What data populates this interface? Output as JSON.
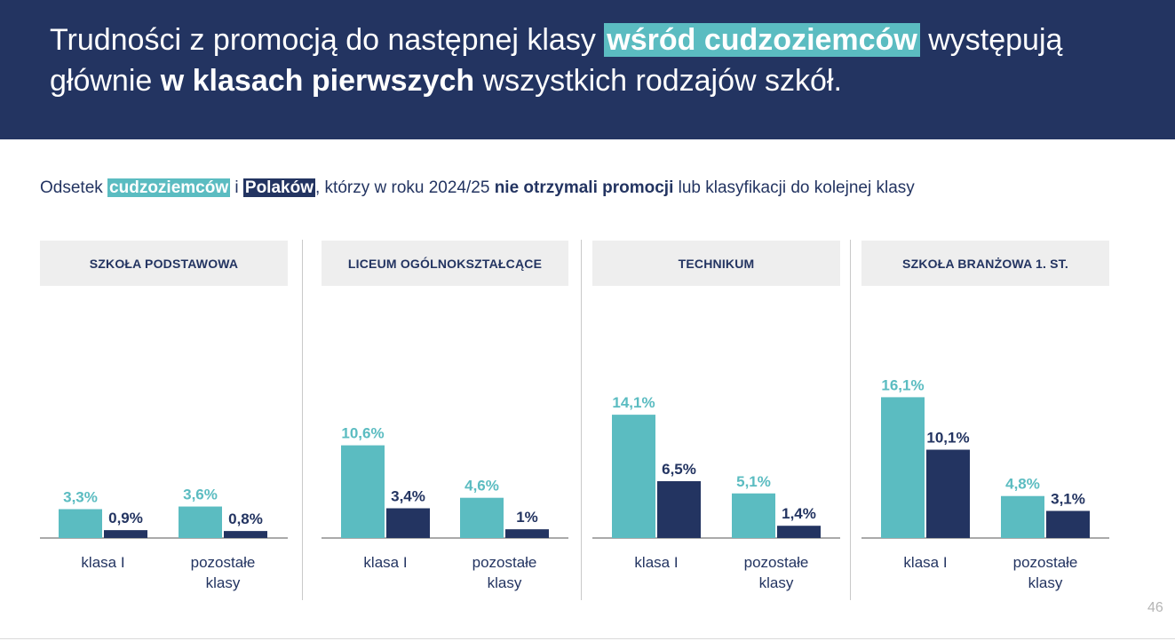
{
  "header": {
    "title_part1": "Trudności z promocją do następnej klasy ",
    "title_highlight": "wśród cudzoziemców",
    "title_part2": " występują",
    "title_part3": "głównie ",
    "title_bold": "w klasach pierwszych",
    "title_part4": " wszystkich rodzajów szkół."
  },
  "subtitle": {
    "part1": "Odsetek ",
    "foreigners": "cudzoziemców",
    "part2": " i ",
    "poles": "Polaków",
    "part3": ", którzy w roku 2024/25 ",
    "bold": "nie otrzymali promocji",
    "part4": " lub klasyfikacji do kolejnej klasy"
  },
  "colors": {
    "foreigners": "#5bbcc1",
    "poles": "#233461",
    "header_bg": "#233461",
    "panel_bg": "#eeeeee"
  },
  "page_number": "46",
  "chart_data": [
    {
      "type": "bar",
      "title": "SZKOŁA PODSTAWOWA",
      "categories": [
        "klasa I",
        "pozostałe klasy"
      ],
      "series": [
        {
          "name": "cudzoziemców",
          "values": [
            3.3,
            3.6
          ],
          "labels": [
            "3,3%",
            "3,6%"
          ]
        },
        {
          "name": "Polaków",
          "values": [
            0.9,
            0.8
          ],
          "labels": [
            "0,9%",
            "0,8%"
          ]
        }
      ]
    },
    {
      "type": "bar",
      "title": "LICEUM OGÓLNOKSZTAŁCĄCE",
      "categories": [
        "klasa I",
        "pozostałe klasy"
      ],
      "series": [
        {
          "name": "cudzoziemców",
          "values": [
            10.6,
            4.6
          ],
          "labels": [
            "10,6%",
            "4,6%"
          ]
        },
        {
          "name": "Polaków",
          "values": [
            3.4,
            1.0
          ],
          "labels": [
            "3,4%",
            "1%"
          ]
        }
      ]
    },
    {
      "type": "bar",
      "title": "TECHNIKUM",
      "categories": [
        "klasa I",
        "pozostałe klasy"
      ],
      "series": [
        {
          "name": "cudzoziemców",
          "values": [
            14.1,
            5.1
          ],
          "labels": [
            "14,1%",
            "5,1%"
          ]
        },
        {
          "name": "Polaków",
          "values": [
            6.5,
            1.4
          ],
          "labels": [
            "6,5%",
            "1,4%"
          ]
        }
      ]
    },
    {
      "type": "bar",
      "title": "SZKOŁA BRANŻOWA 1. ST.",
      "categories": [
        "klasa I",
        "pozostałe klasy"
      ],
      "series": [
        {
          "name": "cudzoziemców",
          "values": [
            16.1,
            4.8
          ],
          "labels": [
            "16,1%",
            "4,8%"
          ]
        },
        {
          "name": "Polaków",
          "values": [
            10.1,
            3.1
          ],
          "labels": [
            "10,1%",
            "3,1%"
          ]
        }
      ]
    }
  ]
}
